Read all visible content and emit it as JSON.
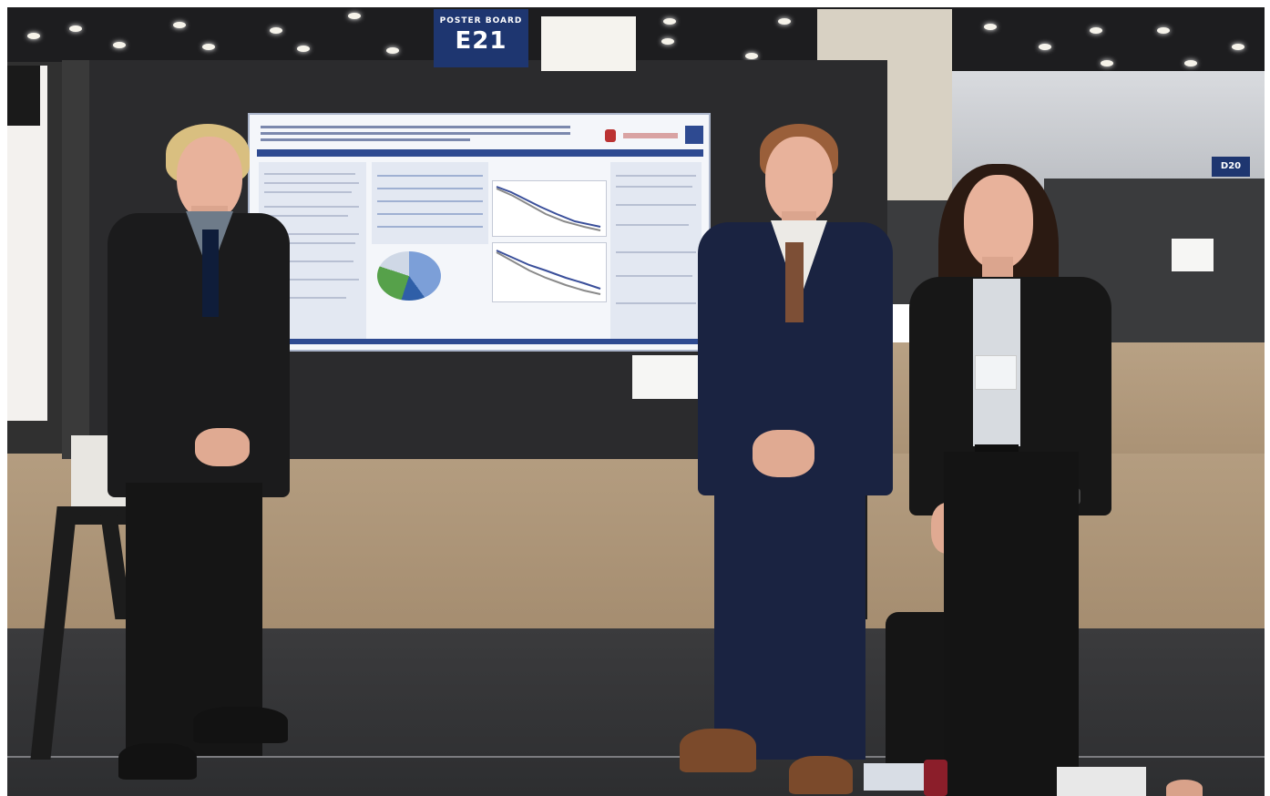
{
  "scene": {
    "board_sign": {
      "top": "POSTER BOARD",
      "number": "E21"
    },
    "side_board_number": "D20",
    "colors": {
      "board_sign_blue": "#1e3670",
      "poster_board": "#2b2b2d",
      "carpet": "#ab9375",
      "floor": "#333436"
    }
  }
}
